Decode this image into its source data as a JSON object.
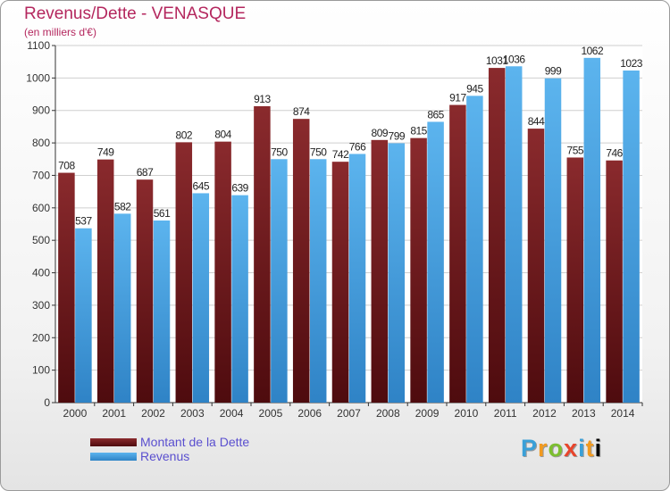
{
  "chart_data": {
    "type": "bar",
    "title": "Revenus/Dette - VENASQUE",
    "subtitle": "(en milliers d'€)",
    "categories": [
      "2000",
      "2001",
      "2002",
      "2003",
      "2004",
      "2005",
      "2006",
      "2007",
      "2008",
      "2009",
      "2010",
      "2011",
      "2012",
      "2013",
      "2014"
    ],
    "series": [
      {
        "name": "Montant de la Dette",
        "color": "#7a1f22",
        "values": [
          708,
          749,
          687,
          802,
          804,
          913,
          874,
          742,
          809,
          815,
          917,
          1031,
          844,
          755,
          746
        ]
      },
      {
        "name": "Revenus",
        "color": "#4da6e6",
        "values": [
          537,
          582,
          561,
          645,
          639,
          750,
          750,
          766,
          799,
          865,
          945,
          1036,
          999,
          1062,
          1023
        ]
      }
    ],
    "ylim": [
      0,
      1100
    ],
    "yticks": [
      0,
      100,
      200,
      300,
      400,
      500,
      600,
      700,
      800,
      900,
      1000,
      1100
    ],
    "grid": true,
    "legend_position": "bottom-left"
  },
  "logo": {
    "letters": [
      "P",
      "r",
      "o",
      "x",
      "i",
      "t",
      "i"
    ]
  }
}
